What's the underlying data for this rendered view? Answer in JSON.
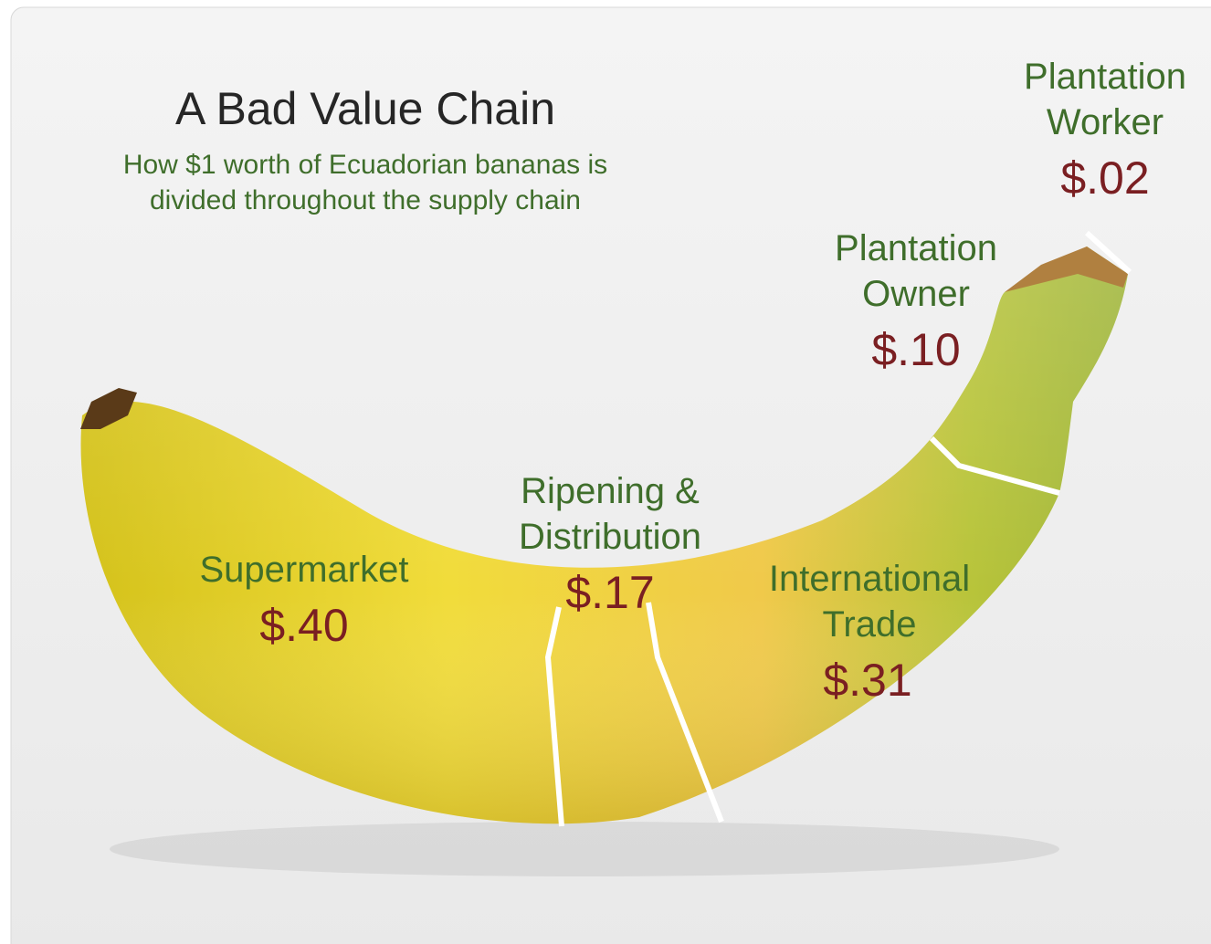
{
  "title": "A Bad Value Chain",
  "subtitle": [
    "How $1 worth of Ecuadorian bananas is",
    "divided throughout the supply chain"
  ],
  "segments": [
    {
      "label": [
        "Supermarket"
      ],
      "price": "$.40"
    },
    {
      "label": [
        "Ripening &",
        "Distribution"
      ],
      "price": "$.17"
    },
    {
      "label": [
        "International",
        "Trade"
      ],
      "price": "$.31"
    },
    {
      "label": [
        "Plantation",
        "Owner"
      ],
      "price": "$.10"
    },
    {
      "label": [
        "Plantation",
        "Worker"
      ],
      "price": "$.02"
    }
  ]
}
